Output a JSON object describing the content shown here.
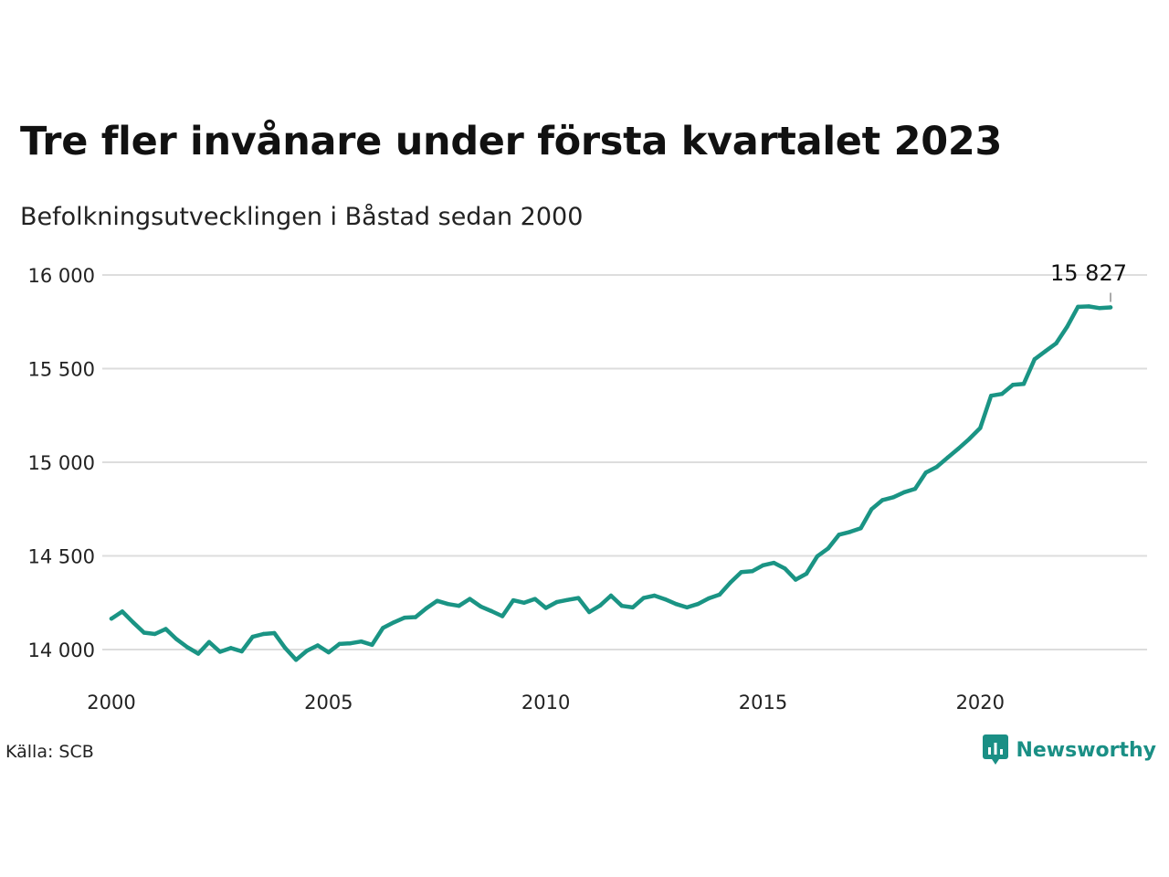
{
  "title": "Tre fler invånare under första kvartalet 2023",
  "subtitle": "Befolkningsutvecklingen i Båstad sedan 2000",
  "source": "Källa: SCB",
  "brand": {
    "name": "Newsworthy",
    "icon": "newsworthy-logo-icon"
  },
  "colors": {
    "line": "#1a9484",
    "grid": "#dddddd",
    "brand": "#1a8f85"
  },
  "chart_data": {
    "type": "line",
    "title": "Tre fler invånare under första kvartalet 2023",
    "subtitle": "Befolkningsutvecklingen i Båstad sedan 2000",
    "xlabel": "",
    "ylabel": "",
    "xlim": [
      2000,
      2024
    ],
    "ylim": [
      13850,
      16100
    ],
    "grid": true,
    "x_ticks": [
      2000,
      2005,
      2010,
      2015,
      2020
    ],
    "x_tick_labels": [
      "2000",
      "2005",
      "2010",
      "2015",
      "2020"
    ],
    "y_ticks": [
      14000,
      14500,
      15000,
      15500,
      16000
    ],
    "y_tick_labels": [
      "14 000",
      "14 500",
      "15 000",
      "15 500",
      "16 000"
    ],
    "annotation": {
      "x": 2023.0,
      "y": 15827,
      "label": "15 827"
    },
    "series": [
      {
        "x": [
          2000.0,
          2000.25,
          2000.5,
          2000.75,
          2001.0,
          2001.25,
          2001.5,
          2001.75,
          2002.0,
          2002.25,
          2002.5,
          2002.75,
          2003.0,
          2003.25,
          2003.5,
          2003.75,
          2004.0,
          2004.25,
          2004.5,
          2004.75,
          2005.0,
          2005.25,
          2005.5,
          2005.75,
          2006.0,
          2006.25,
          2006.5,
          2006.75,
          2007.0,
          2007.25,
          2007.5,
          2007.75,
          2008.0,
          2008.25,
          2008.5,
          2008.75,
          2009.0,
          2009.25,
          2009.5,
          2009.75,
          2010.0,
          2010.25,
          2010.5,
          2010.75,
          2011.0,
          2011.25,
          2011.5,
          2011.75,
          2012.0,
          2012.25,
          2012.5,
          2012.75,
          2013.0,
          2013.25,
          2013.5,
          2013.75,
          2014.0,
          2014.25,
          2014.5,
          2014.75,
          2015.0,
          2015.25,
          2015.5,
          2015.75,
          2016.0,
          2016.25,
          2016.5,
          2016.75,
          2017.0,
          2017.25,
          2017.5,
          2017.75,
          2018.0,
          2018.25,
          2018.5,
          2018.75,
          2019.0,
          2019.25,
          2019.5,
          2019.75,
          2020.0,
          2020.25,
          2020.5,
          2020.75,
          2021.0,
          2021.25,
          2021.5,
          2021.75,
          2022.0,
          2022.25,
          2022.5,
          2022.75,
          2023.0
        ],
        "values": [
          14165,
          14203,
          14145,
          14090,
          14083,
          14110,
          14055,
          14012,
          13978,
          14040,
          13988,
          14008,
          13990,
          14068,
          14083,
          14088,
          14008,
          13945,
          13993,
          14022,
          13985,
          14030,
          14033,
          14043,
          14025,
          14115,
          14145,
          14170,
          14173,
          14220,
          14260,
          14243,
          14233,
          14270,
          14230,
          14205,
          14178,
          14263,
          14250,
          14270,
          14222,
          14253,
          14265,
          14275,
          14200,
          14235,
          14288,
          14233,
          14225,
          14275,
          14288,
          14268,
          14243,
          14225,
          14243,
          14273,
          14293,
          14358,
          14413,
          14418,
          14450,
          14463,
          14433,
          14373,
          14405,
          14498,
          14540,
          14613,
          14628,
          14648,
          14750,
          14798,
          14813,
          14840,
          14858,
          14945,
          14975,
          15025,
          15073,
          15125,
          15183,
          15355,
          15365,
          15413,
          15418,
          15550,
          15593,
          15635,
          15723,
          15830,
          15832,
          15823,
          15827
        ]
      }
    ]
  }
}
